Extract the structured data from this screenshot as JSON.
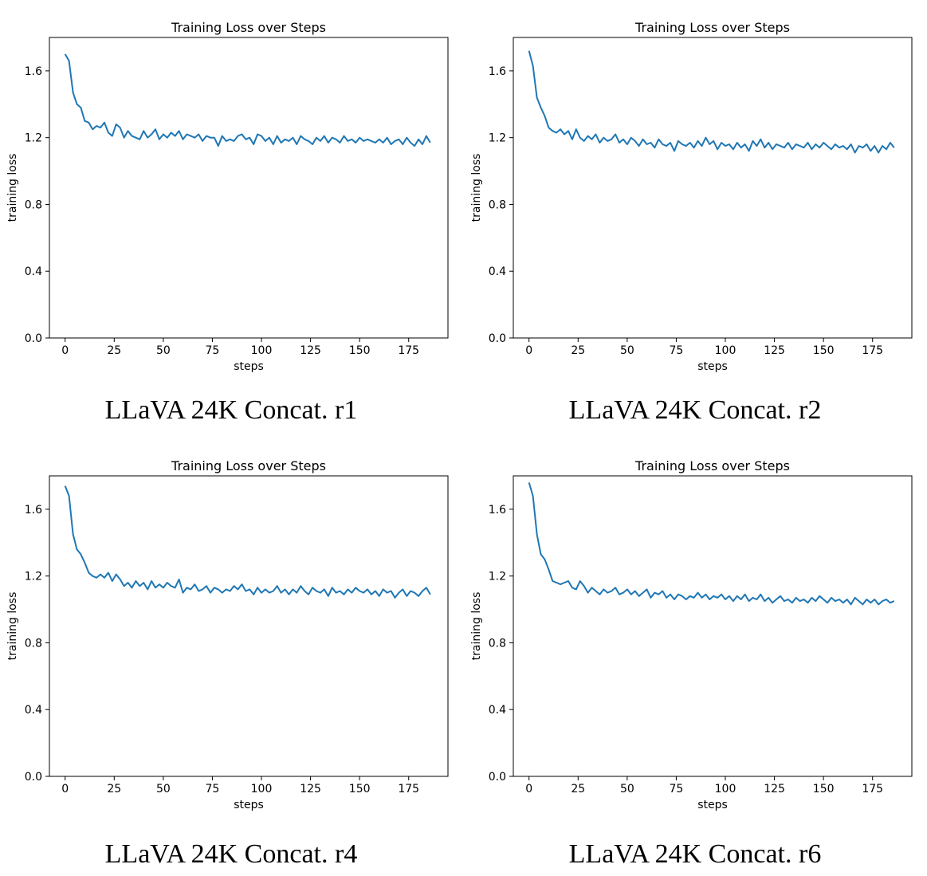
{
  "chart_data": [
    {
      "type": "line",
      "caption": "LLaVA 24K Concat. r1",
      "title": "Training Loss over Steps",
      "xlabel": "steps",
      "ylabel": "training loss",
      "xlim": [
        -8,
        195
      ],
      "ylim": [
        0,
        1.8
      ],
      "xticks": [
        0,
        25,
        50,
        75,
        100,
        125,
        150,
        175
      ],
      "yticks": [
        0.0,
        0.4,
        0.8,
        1.2,
        1.6
      ],
      "legend": "none",
      "grid": false,
      "series": [
        {
          "color": "#1f77b4",
          "x": [
            0,
            2,
            4,
            6,
            8,
            10,
            12,
            14,
            16,
            18,
            20,
            22,
            24,
            26,
            28,
            30,
            32,
            34,
            36,
            38,
            40,
            42,
            44,
            46,
            48,
            50,
            52,
            54,
            56,
            58,
            60,
            62,
            64,
            66,
            68,
            70,
            72,
            74,
            76,
            78,
            80,
            82,
            84,
            86,
            88,
            90,
            92,
            94,
            96,
            98,
            100,
            102,
            104,
            106,
            108,
            110,
            112,
            114,
            116,
            118,
            120,
            122,
            124,
            126,
            128,
            130,
            132,
            134,
            136,
            138,
            140,
            142,
            144,
            146,
            148,
            150,
            152,
            154,
            156,
            158,
            160,
            162,
            164,
            166,
            168,
            170,
            172,
            174,
            176,
            178,
            180,
            182,
            184,
            186
          ],
          "y": [
            1.7,
            1.66,
            1.47,
            1.4,
            1.38,
            1.3,
            1.29,
            1.25,
            1.27,
            1.26,
            1.29,
            1.23,
            1.21,
            1.28,
            1.26,
            1.2,
            1.24,
            1.21,
            1.2,
            1.19,
            1.24,
            1.2,
            1.22,
            1.25,
            1.19,
            1.22,
            1.2,
            1.23,
            1.21,
            1.24,
            1.19,
            1.22,
            1.21,
            1.2,
            1.22,
            1.18,
            1.21,
            1.2,
            1.2,
            1.15,
            1.21,
            1.18,
            1.19,
            1.18,
            1.21,
            1.22,
            1.19,
            1.2,
            1.16,
            1.22,
            1.21,
            1.18,
            1.2,
            1.16,
            1.21,
            1.17,
            1.19,
            1.18,
            1.2,
            1.16,
            1.21,
            1.19,
            1.18,
            1.16,
            1.2,
            1.18,
            1.21,
            1.17,
            1.2,
            1.19,
            1.17,
            1.21,
            1.18,
            1.19,
            1.17,
            1.2,
            1.18,
            1.19,
            1.18,
            1.17,
            1.19,
            1.17,
            1.2,
            1.16,
            1.18,
            1.19,
            1.16,
            1.2,
            1.17,
            1.15,
            1.19,
            1.16,
            1.21,
            1.17
          ]
        }
      ]
    },
    {
      "type": "line",
      "caption": "LLaVA 24K Concat. r2",
      "title": "Training Loss over Steps",
      "xlabel": "steps",
      "ylabel": "training loss",
      "xlim": [
        -8,
        195
      ],
      "ylim": [
        0,
        1.8
      ],
      "xticks": [
        0,
        25,
        50,
        75,
        100,
        125,
        150,
        175
      ],
      "yticks": [
        0.0,
        0.4,
        0.8,
        1.2,
        1.6
      ],
      "legend": "none",
      "grid": false,
      "series": [
        {
          "color": "#1f77b4",
          "x": [
            0,
            2,
            4,
            6,
            8,
            10,
            12,
            14,
            16,
            18,
            20,
            22,
            24,
            26,
            28,
            30,
            32,
            34,
            36,
            38,
            40,
            42,
            44,
            46,
            48,
            50,
            52,
            54,
            56,
            58,
            60,
            62,
            64,
            66,
            68,
            70,
            72,
            74,
            76,
            78,
            80,
            82,
            84,
            86,
            88,
            90,
            92,
            94,
            96,
            98,
            100,
            102,
            104,
            106,
            108,
            110,
            112,
            114,
            116,
            118,
            120,
            122,
            124,
            126,
            128,
            130,
            132,
            134,
            136,
            138,
            140,
            142,
            144,
            146,
            148,
            150,
            152,
            154,
            156,
            158,
            160,
            162,
            164,
            166,
            168,
            170,
            172,
            174,
            176,
            178,
            180,
            182,
            184,
            186
          ],
          "y": [
            1.72,
            1.63,
            1.44,
            1.38,
            1.33,
            1.26,
            1.24,
            1.23,
            1.25,
            1.22,
            1.24,
            1.19,
            1.25,
            1.2,
            1.18,
            1.21,
            1.19,
            1.22,
            1.17,
            1.2,
            1.18,
            1.19,
            1.22,
            1.17,
            1.19,
            1.16,
            1.2,
            1.18,
            1.15,
            1.19,
            1.16,
            1.17,
            1.14,
            1.19,
            1.16,
            1.15,
            1.17,
            1.12,
            1.18,
            1.16,
            1.15,
            1.17,
            1.14,
            1.18,
            1.15,
            1.2,
            1.16,
            1.18,
            1.13,
            1.17,
            1.15,
            1.16,
            1.13,
            1.17,
            1.14,
            1.16,
            1.12,
            1.18,
            1.15,
            1.19,
            1.14,
            1.17,
            1.13,
            1.16,
            1.15,
            1.14,
            1.17,
            1.13,
            1.16,
            1.15,
            1.14,
            1.17,
            1.13,
            1.16,
            1.14,
            1.17,
            1.15,
            1.13,
            1.16,
            1.14,
            1.15,
            1.13,
            1.16,
            1.11,
            1.15,
            1.14,
            1.16,
            1.12,
            1.15,
            1.11,
            1.15,
            1.13,
            1.17,
            1.14
          ]
        }
      ]
    },
    {
      "type": "line",
      "caption": "LLaVA 24K Concat. r4",
      "title": "Training Loss over Steps",
      "xlabel": "steps",
      "ylabel": "training loss",
      "xlim": [
        -8,
        195
      ],
      "ylim": [
        0,
        1.8
      ],
      "xticks": [
        0,
        25,
        50,
        75,
        100,
        125,
        150,
        175
      ],
      "yticks": [
        0.0,
        0.4,
        0.8,
        1.2,
        1.6
      ],
      "legend": "none",
      "grid": false,
      "series": [
        {
          "color": "#1f77b4",
          "x": [
            0,
            2,
            4,
            6,
            8,
            10,
            12,
            14,
            16,
            18,
            20,
            22,
            24,
            26,
            28,
            30,
            32,
            34,
            36,
            38,
            40,
            42,
            44,
            46,
            48,
            50,
            52,
            54,
            56,
            58,
            60,
            62,
            64,
            66,
            68,
            70,
            72,
            74,
            76,
            78,
            80,
            82,
            84,
            86,
            88,
            90,
            92,
            94,
            96,
            98,
            100,
            102,
            104,
            106,
            108,
            110,
            112,
            114,
            116,
            118,
            120,
            122,
            124,
            126,
            128,
            130,
            132,
            134,
            136,
            138,
            140,
            142,
            144,
            146,
            148,
            150,
            152,
            154,
            156,
            158,
            160,
            162,
            164,
            166,
            168,
            170,
            172,
            174,
            176,
            178,
            180,
            182,
            184,
            186
          ],
          "y": [
            1.74,
            1.68,
            1.45,
            1.36,
            1.33,
            1.28,
            1.22,
            1.2,
            1.19,
            1.21,
            1.19,
            1.22,
            1.17,
            1.21,
            1.18,
            1.14,
            1.16,
            1.13,
            1.17,
            1.14,
            1.16,
            1.12,
            1.17,
            1.13,
            1.15,
            1.13,
            1.16,
            1.14,
            1.13,
            1.18,
            1.1,
            1.13,
            1.12,
            1.15,
            1.11,
            1.12,
            1.14,
            1.1,
            1.13,
            1.12,
            1.1,
            1.12,
            1.11,
            1.14,
            1.12,
            1.15,
            1.11,
            1.12,
            1.09,
            1.13,
            1.1,
            1.12,
            1.1,
            1.11,
            1.14,
            1.1,
            1.12,
            1.09,
            1.12,
            1.1,
            1.14,
            1.11,
            1.09,
            1.13,
            1.11,
            1.1,
            1.12,
            1.08,
            1.13,
            1.1,
            1.11,
            1.09,
            1.12,
            1.1,
            1.13,
            1.11,
            1.1,
            1.12,
            1.09,
            1.11,
            1.08,
            1.12,
            1.1,
            1.11,
            1.07,
            1.1,
            1.12,
            1.08,
            1.11,
            1.1,
            1.08,
            1.11,
            1.13,
            1.09
          ]
        }
      ]
    },
    {
      "type": "line",
      "caption": "LLaVA 24K Concat. r6",
      "title": "Training Loss over Steps",
      "xlabel": "steps",
      "ylabel": "training loss",
      "xlim": [
        -8,
        195
      ],
      "ylim": [
        0,
        1.8
      ],
      "xticks": [
        0,
        25,
        50,
        75,
        100,
        125,
        150,
        175
      ],
      "yticks": [
        0.0,
        0.4,
        0.8,
        1.2,
        1.6
      ],
      "legend": "none",
      "grid": false,
      "series": [
        {
          "color": "#1f77b4",
          "x": [
            0,
            2,
            4,
            6,
            8,
            10,
            12,
            14,
            16,
            18,
            20,
            22,
            24,
            26,
            28,
            30,
            32,
            34,
            36,
            38,
            40,
            42,
            44,
            46,
            48,
            50,
            52,
            54,
            56,
            58,
            60,
            62,
            64,
            66,
            68,
            70,
            72,
            74,
            76,
            78,
            80,
            82,
            84,
            86,
            88,
            90,
            92,
            94,
            96,
            98,
            100,
            102,
            104,
            106,
            108,
            110,
            112,
            114,
            116,
            118,
            120,
            122,
            124,
            126,
            128,
            130,
            132,
            134,
            136,
            138,
            140,
            142,
            144,
            146,
            148,
            150,
            152,
            154,
            156,
            158,
            160,
            162,
            164,
            166,
            168,
            170,
            172,
            174,
            176,
            178,
            180,
            182,
            184,
            186
          ],
          "y": [
            1.76,
            1.68,
            1.45,
            1.33,
            1.3,
            1.24,
            1.17,
            1.16,
            1.15,
            1.16,
            1.17,
            1.13,
            1.12,
            1.17,
            1.14,
            1.1,
            1.13,
            1.11,
            1.09,
            1.12,
            1.1,
            1.11,
            1.13,
            1.09,
            1.1,
            1.12,
            1.09,
            1.11,
            1.08,
            1.1,
            1.12,
            1.07,
            1.1,
            1.09,
            1.11,
            1.07,
            1.09,
            1.06,
            1.09,
            1.08,
            1.06,
            1.08,
            1.07,
            1.1,
            1.07,
            1.09,
            1.06,
            1.08,
            1.07,
            1.09,
            1.06,
            1.08,
            1.05,
            1.08,
            1.06,
            1.09,
            1.05,
            1.07,
            1.06,
            1.09,
            1.05,
            1.07,
            1.04,
            1.06,
            1.08,
            1.05,
            1.06,
            1.04,
            1.07,
            1.05,
            1.06,
            1.04,
            1.07,
            1.05,
            1.08,
            1.06,
            1.04,
            1.07,
            1.05,
            1.06,
            1.04,
            1.06,
            1.03,
            1.07,
            1.05,
            1.03,
            1.06,
            1.04,
            1.06,
            1.03,
            1.05,
            1.06,
            1.04,
            1.05
          ]
        }
      ]
    }
  ]
}
